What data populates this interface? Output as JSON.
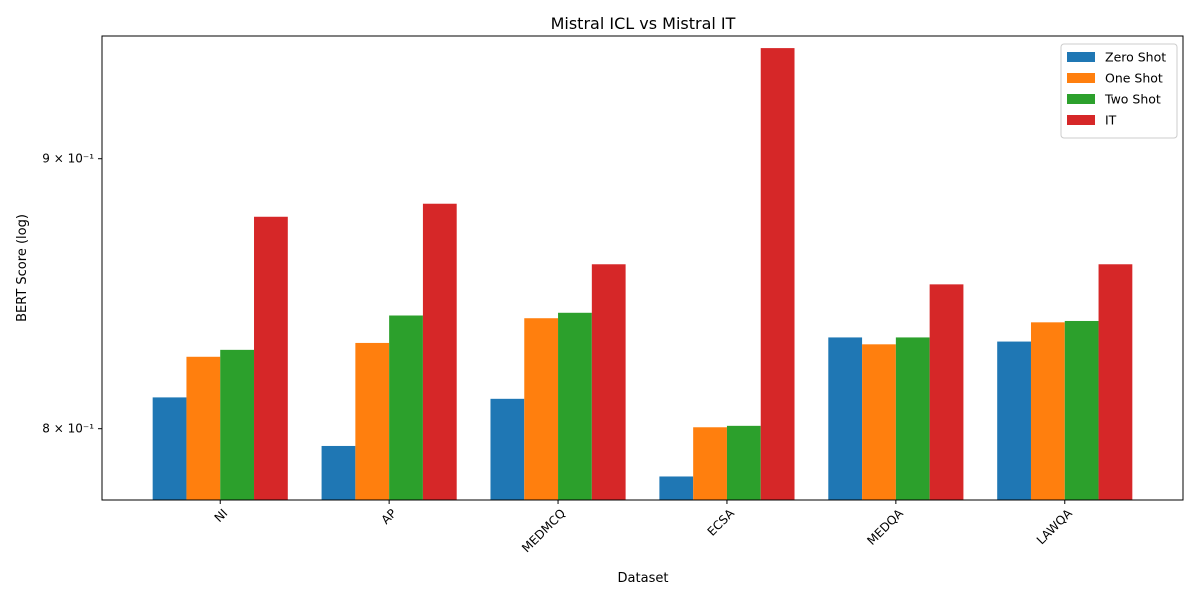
{
  "chart_data": {
    "type": "bar",
    "title": "Mistral ICL vs Mistral IT",
    "xlabel": "Dataset",
    "ylabel": "BERT Score (log)",
    "yscale": "log",
    "ylim": [
      0.7755,
      0.9495
    ],
    "yticks": [
      {
        "value": 0.8,
        "label": "8 × 10⁻¹"
      },
      {
        "value": 0.9,
        "label": "9 × 10⁻¹"
      }
    ],
    "categories": [
      "NI",
      "AP",
      "MEDMCQ",
      "ECSA",
      "MEDQA",
      "LAWQA"
    ],
    "series": [
      {
        "name": "Zero Shot",
        "color": "#1f77b4",
        "values": [
          0.811,
          0.794,
          0.8105,
          0.7835,
          0.8325,
          0.831
        ]
      },
      {
        "name": "One Shot",
        "color": "#ff7f0e",
        "values": [
          0.8255,
          0.8305,
          0.8395,
          0.8005,
          0.83,
          0.838
        ]
      },
      {
        "name": "Two Shot",
        "color": "#2ca02c",
        "values": [
          0.828,
          0.8405,
          0.8415,
          0.801,
          0.8325,
          0.8385
        ]
      },
      {
        "name": "IT",
        "color": "#d62728",
        "values": [
          0.8775,
          0.8825,
          0.8595,
          0.9445,
          0.852,
          0.8595
        ]
      }
    ],
    "legend_position": "top-right",
    "grid": false
  }
}
